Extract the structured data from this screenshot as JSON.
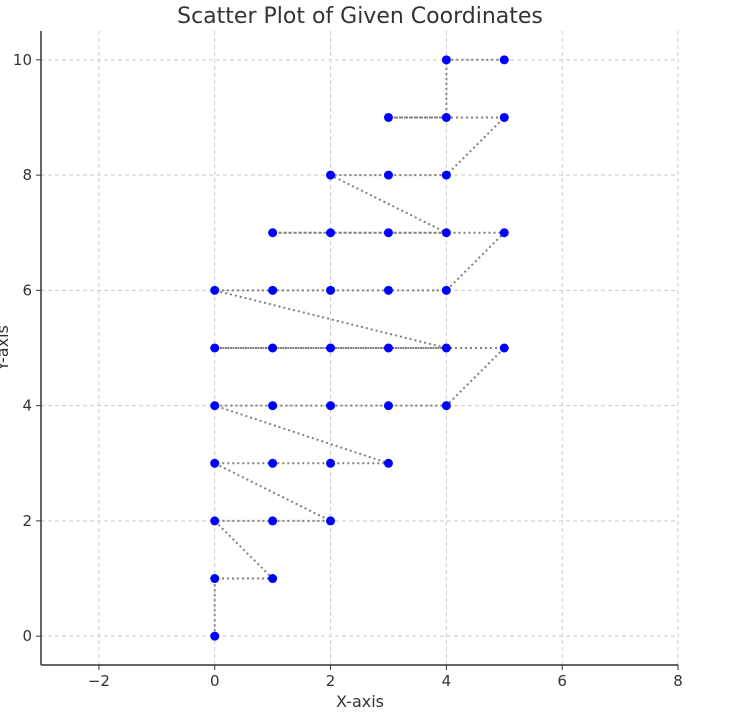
{
  "chart_data": {
    "type": "scatter",
    "title": "Scatter Plot of Given Coordinates",
    "xlabel": "X-axis",
    "ylabel": "Y-axis",
    "xlim": [
      -3,
      8
    ],
    "ylim": [
      -0.5,
      10.5
    ],
    "xticks": [
      -2,
      0,
      2,
      4,
      6,
      8
    ],
    "xtick_labels": [
      "−2",
      "0",
      "2",
      "4",
      "6",
      "8"
    ],
    "yticks": [
      0,
      2,
      4,
      6,
      8,
      10
    ],
    "ytick_labels": [
      "0",
      "2",
      "4",
      "6",
      "8",
      "10"
    ],
    "grid": true,
    "marker_color": "#0000ff",
    "line_color": "#808080",
    "series": [
      {
        "x": [
          0,
          0,
          1,
          0,
          1,
          2,
          0,
          1,
          2,
          3,
          0,
          1,
          2,
          3,
          4,
          5,
          0,
          1,
          2,
          3,
          4,
          0,
          1,
          2,
          3,
          4,
          5,
          1,
          2,
          3,
          4,
          2,
          3,
          4,
          5,
          3,
          4,
          4,
          5
        ],
        "y": [
          0,
          1,
          1,
          2,
          2,
          2,
          3,
          3,
          3,
          3,
          4,
          4,
          4,
          4,
          4,
          5,
          5,
          5,
          5,
          5,
          5,
          6,
          6,
          6,
          6,
          6,
          7,
          7,
          7,
          7,
          7,
          8,
          8,
          8,
          9,
          9,
          9,
          10,
          10
        ]
      }
    ]
  }
}
